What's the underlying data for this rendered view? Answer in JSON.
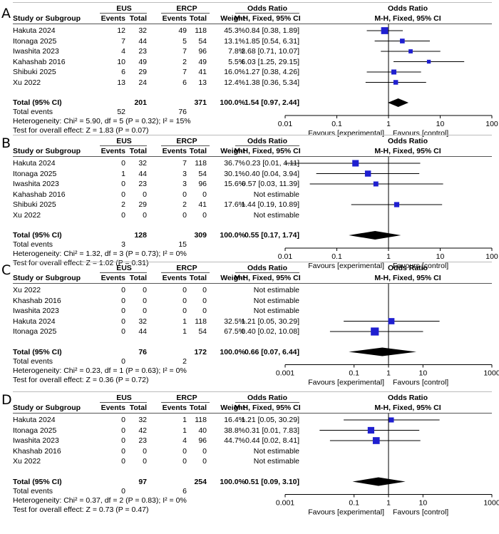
{
  "headers": {
    "study": "Study or Subgroup",
    "events": "Events",
    "total": "Total",
    "weight": "Weight",
    "or_title": "Odds Ratio",
    "or_method": "M-H, Fixed, 95% CI",
    "group1": "EUS",
    "group2": "ERCP",
    "total_row_label": "Total (95% CI)",
    "total_events_label": "Total events",
    "favours_left": "Favours [experimental]",
    "favours_right": "Favours [control]"
  },
  "colors": {
    "square": "#1f1fd0",
    "diamond": "#000000",
    "line": "#000000"
  },
  "chart_data": [
    {
      "type": "forest",
      "panel": "A",
      "scale": "log",
      "ticks": [
        "0.01",
        "0.1",
        "1",
        "10",
        "100"
      ],
      "tick_values": [
        0.01,
        0.1,
        1,
        10,
        100
      ],
      "rows": [
        {
          "study": "Hakuta 2024",
          "e1": "12",
          "t1": "32",
          "e2": "49",
          "t2": "118",
          "weight": "45.3%",
          "ci_text": "0.84 [0.38, 1.89]",
          "or": 0.84,
          "lo": 0.38,
          "hi": 1.89
        },
        {
          "study": "Itonaga 2025",
          "e1": "7",
          "t1": "44",
          "e2": "5",
          "t2": "54",
          "weight": "13.1%",
          "ci_text": "1.85 [0.54, 6.31]",
          "or": 1.85,
          "lo": 0.54,
          "hi": 6.31
        },
        {
          "study": "Iwashita 2023",
          "e1": "4",
          "t1": "23",
          "e2": "7",
          "t2": "96",
          "weight": "7.8%",
          "ci_text": "2.68 [0.71, 10.07]",
          "or": 2.68,
          "lo": 0.71,
          "hi": 10.07
        },
        {
          "study": "Kahashab 2016",
          "e1": "10",
          "t1": "49",
          "e2": "2",
          "t2": "49",
          "weight": "5.5%",
          "ci_text": "6.03 [1.25, 29.15]",
          "or": 6.03,
          "lo": 1.25,
          "hi": 29.15
        },
        {
          "study": "Shibuki 2025",
          "e1": "6",
          "t1": "29",
          "e2": "7",
          "t2": "41",
          "weight": "16.0%",
          "ci_text": "1.27 [0.38, 4.26]",
          "or": 1.27,
          "lo": 0.38,
          "hi": 4.26
        },
        {
          "study": "Xu  2022",
          "e1": "13",
          "t1": "24",
          "e2": "6",
          "t2": "13",
          "weight": "12.4%",
          "ci_text": "1.38 [0.36, 5.34]",
          "or": 1.38,
          "lo": 0.36,
          "hi": 5.34
        }
      ],
      "total": {
        "t1": "201",
        "t2": "371",
        "weight": "100.0%",
        "ci_text": "1.54 [0.97, 2.44]",
        "or": 1.54,
        "lo": 0.97,
        "hi": 2.44
      },
      "total_events": {
        "e1": "52",
        "e2": "76"
      },
      "heterogeneity": "Heterogeneity: Chi² = 5.90, df = 5 (P = 0.32); I² = 15%",
      "overall_effect": "Test for overall effect: Z = 1.83 (P = 0.07)"
    },
    {
      "type": "forest",
      "panel": "B",
      "scale": "log",
      "ticks": [
        "0.01",
        "0.1",
        "1",
        "10",
        "100"
      ],
      "tick_values": [
        0.01,
        0.1,
        1,
        10,
        100
      ],
      "rows": [
        {
          "study": "Hakuta  2024",
          "e1": "0",
          "t1": "32",
          "e2": "7",
          "t2": "118",
          "weight": "36.7%",
          "ci_text": "0.23 [0.01, 4.11]",
          "or": 0.23,
          "lo": 0.01,
          "hi": 4.11
        },
        {
          "study": "Itonaga 2025",
          "e1": "1",
          "t1": "44",
          "e2": "3",
          "t2": "54",
          "weight": "30.1%",
          "ci_text": "0.40 [0.04, 3.94]",
          "or": 0.4,
          "lo": 0.04,
          "hi": 3.94
        },
        {
          "study": "Iwashita 2023",
          "e1": "0",
          "t1": "23",
          "e2": "3",
          "t2": "96",
          "weight": "15.6%",
          "ci_text": "0.57 [0.03, 11.39]",
          "or": 0.57,
          "lo": 0.03,
          "hi": 11.39
        },
        {
          "study": "Kahashab 2016",
          "e1": "0",
          "t1": "0",
          "e2": "0",
          "t2": "0",
          "weight": "",
          "ci_text": "Not estimable",
          "or": null,
          "lo": null,
          "hi": null
        },
        {
          "study": "Shibuki 2025",
          "e1": "2",
          "t1": "29",
          "e2": "2",
          "t2": "41",
          "weight": "17.6%",
          "ci_text": "1.44 [0.19, 10.89]",
          "or": 1.44,
          "lo": 0.19,
          "hi": 10.89
        },
        {
          "study": "Xu  2022",
          "e1": "0",
          "t1": "0",
          "e2": "0",
          "t2": "0",
          "weight": "",
          "ci_text": "Not estimable",
          "or": null,
          "lo": null,
          "hi": null
        }
      ],
      "total": {
        "t1": "128",
        "t2": "309",
        "weight": "100.0%",
        "ci_text": "0.55 [0.17, 1.74]",
        "or": 0.55,
        "lo": 0.17,
        "hi": 1.74
      },
      "total_events": {
        "e1": "3",
        "e2": "15"
      },
      "heterogeneity": "Heterogeneity: Chi² = 1.32, df = 3 (P = 0.73); I² = 0%",
      "overall_effect": "Test for overall effect: Z = 1.02 (P = 0.31)"
    },
    {
      "type": "forest",
      "panel": "C",
      "scale": "log",
      "ticks": [
        "0.001",
        "0.1",
        "1",
        "10",
        "1000"
      ],
      "tick_values": [
        0.001,
        0.1,
        1,
        10,
        1000
      ],
      "rows": [
        {
          "study": "Xu 2022",
          "e1": "0",
          "t1": "0",
          "e2": "0",
          "t2": "0",
          "weight": "",
          "ci_text": "Not estimable",
          "or": null,
          "lo": null,
          "hi": null
        },
        {
          "study": "Khashab  2016",
          "e1": "0",
          "t1": "0",
          "e2": "0",
          "t2": "0",
          "weight": "",
          "ci_text": "Not estimable",
          "or": null,
          "lo": null,
          "hi": null
        },
        {
          "study": "Iwashita 2023",
          "e1": "0",
          "t1": "0",
          "e2": "0",
          "t2": "0",
          "weight": "",
          "ci_text": "Not estimable",
          "or": null,
          "lo": null,
          "hi": null
        },
        {
          "study": "Hakuta 2024",
          "e1": "0",
          "t1": "32",
          "e2": "1",
          "t2": "118",
          "weight": "32.5%",
          "ci_text": "1.21 [0.05, 30.29]",
          "or": 1.21,
          "lo": 0.05,
          "hi": 30.29
        },
        {
          "study": "Itonaga 2025",
          "e1": "0",
          "t1": "44",
          "e2": "1",
          "t2": "54",
          "weight": "67.5%",
          "ci_text": "0.40 [0.02, 10.08]",
          "or": 0.4,
          "lo": 0.02,
          "hi": 10.08
        }
      ],
      "total": {
        "t1": "76",
        "t2": "172",
        "weight": "100.0%",
        "ci_text": "0.66 [0.07, 6.44]",
        "or": 0.66,
        "lo": 0.07,
        "hi": 6.44
      },
      "total_events": {
        "e1": "0",
        "e2": "2"
      },
      "heterogeneity": "Heterogeneity: Chi² = 0.23, df = 1 (P = 0.63); I² = 0%",
      "overall_effect": "Test for overall effect: Z = 0.36 (P = 0.72)"
    },
    {
      "type": "forest",
      "panel": "D",
      "scale": "log",
      "ticks": [
        "0.001",
        "0.1",
        "1",
        "10",
        "1000"
      ],
      "tick_values": [
        0.001,
        0.1,
        1,
        10,
        1000
      ],
      "rows": [
        {
          "study": "Hakuta 2024",
          "e1": "0",
          "t1": "32",
          "e2": "1",
          "t2": "118",
          "weight": "16.4%",
          "ci_text": "1.21 [0.05, 30.29]",
          "or": 1.21,
          "lo": 0.05,
          "hi": 30.29
        },
        {
          "study": "Itonaga 2025",
          "e1": "0",
          "t1": "42",
          "e2": "1",
          "t2": "40",
          "weight": "38.8%",
          "ci_text": "0.31 [0.01, 7.83]",
          "or": 0.31,
          "lo": 0.01,
          "hi": 7.83
        },
        {
          "study": "Iwashita 2023",
          "e1": "0",
          "t1": "23",
          "e2": "4",
          "t2": "96",
          "weight": "44.7%",
          "ci_text": "0.44 [0.02, 8.41]",
          "or": 0.44,
          "lo": 0.02,
          "hi": 8.41
        },
        {
          "study": "Khashab  2016",
          "e1": "0",
          "t1": "0",
          "e2": "0",
          "t2": "0",
          "weight": "",
          "ci_text": "Not estimable",
          "or": null,
          "lo": null,
          "hi": null
        },
        {
          "study": "Xu 2022",
          "e1": "0",
          "t1": "0",
          "e2": "0",
          "t2": "0",
          "weight": "",
          "ci_text": "Not estimable",
          "or": null,
          "lo": null,
          "hi": null
        }
      ],
      "total": {
        "t1": "97",
        "t2": "254",
        "weight": "100.0%",
        "ci_text": "0.51 [0.09, 3.10]",
        "or": 0.51,
        "lo": 0.09,
        "hi": 3.1
      },
      "total_events": {
        "e1": "0",
        "e2": "6"
      },
      "heterogeneity": "Heterogeneity: Chi² = 0.37, df = 2 (P = 0.83); I² = 0%",
      "overall_effect": "Test for overall effect: Z = 0.73 (P = 0.47)"
    }
  ]
}
